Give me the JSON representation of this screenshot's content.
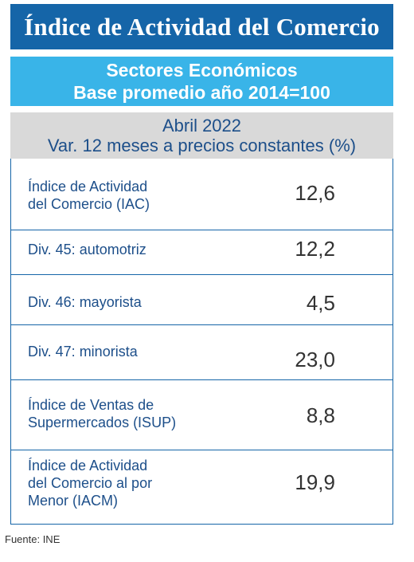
{
  "title": "Índice de Actividad del Comercio",
  "subtitle": {
    "line1": "Sectores Económicos",
    "line2": "Base promedio año 2014=100"
  },
  "period": {
    "line1": "Abril 2022",
    "line2": "Var. 12 meses a precios constantes (%)"
  },
  "rows": [
    {
      "label_lines": [
        "Índice de Actividad",
        "del Comercio (IAC)"
      ],
      "value": "12,6"
    },
    {
      "label_lines": [
        "Div. 45: automotriz"
      ],
      "value": "12,2"
    },
    {
      "label_lines": [
        "Div. 46: mayorista"
      ],
      "value": "4,5"
    },
    {
      "label_lines": [
        "Div. 47: minorista"
      ],
      "value": "23,0"
    },
    {
      "label_lines": [
        "Índice de Ventas de",
        "Supermercados (ISUP)"
      ],
      "value": "8,8"
    },
    {
      "label_lines": [
        "Índice de Actividad",
        "del Comercio al por",
        "Menor (IACM)"
      ],
      "value": "19,9"
    }
  ],
  "source": "Fuente: INE",
  "colors": {
    "title_bg": "#1565a8",
    "subtitle_bg": "#39b4e8",
    "period_bg": "#d9d9d9",
    "label_text": "#1d4f8a"
  }
}
